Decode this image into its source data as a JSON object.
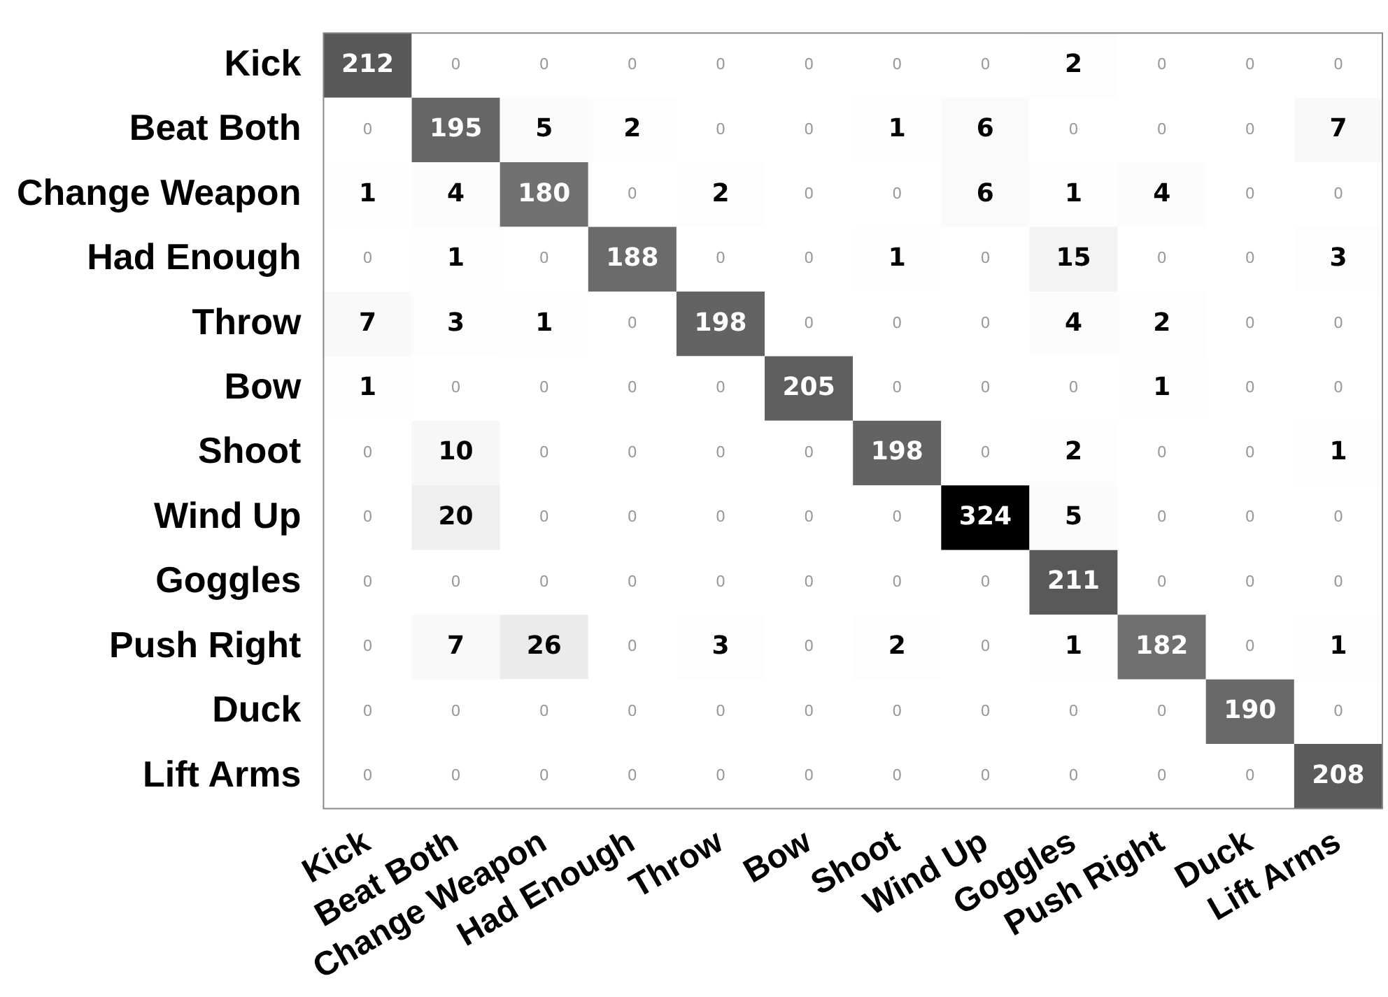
{
  "chart_data": {
    "type": "heatmap",
    "categories": [
      "Kick",
      "Beat Both",
      "Change Weapon",
      "Had Enough",
      "Throw",
      "Bow",
      "Shoot",
      "Wind Up",
      "Goggles",
      "Push Right",
      "Duck",
      "Lift Arms"
    ],
    "y_categories": [
      "Kick",
      "Beat Both",
      "Change Weapon",
      "Had Enough",
      "Throw",
      "Bow",
      "Shoot",
      "Wind Up",
      "Goggles",
      "Push Right",
      "Duck",
      "Lift Arms"
    ],
    "cells": [
      [
        212,
        0,
        0,
        0,
        0,
        0,
        0,
        0,
        2,
        0,
        0,
        0
      ],
      [
        0,
        195,
        5,
        2,
        0,
        0,
        1,
        6,
        0,
        0,
        0,
        7
      ],
      [
        1,
        4,
        180,
        0,
        2,
        0,
        0,
        6,
        1,
        4,
        0,
        0
      ],
      [
        0,
        1,
        0,
        188,
        0,
        0,
        1,
        0,
        15,
        0,
        0,
        3
      ],
      [
        7,
        3,
        1,
        0,
        198,
        0,
        0,
        0,
        4,
        2,
        0,
        0
      ],
      [
        1,
        0,
        0,
        0,
        0,
        205,
        0,
        0,
        0,
        1,
        0,
        0
      ],
      [
        0,
        10,
        0,
        0,
        0,
        0,
        198,
        0,
        2,
        0,
        0,
        1
      ],
      [
        0,
        20,
        0,
        0,
        0,
        0,
        0,
        324,
        5,
        0,
        0,
        0
      ],
      [
        0,
        0,
        0,
        0,
        0,
        0,
        0,
        0,
        211,
        0,
        0,
        0
      ],
      [
        0,
        7,
        26,
        0,
        3,
        0,
        2,
        0,
        1,
        182,
        0,
        1
      ],
      [
        0,
        0,
        0,
        0,
        0,
        0,
        0,
        0,
        0,
        0,
        190,
        0
      ],
      [
        0,
        0,
        0,
        0,
        0,
        0,
        0,
        0,
        0,
        0,
        0,
        208
      ]
    ],
    "data_labels": true
  }
}
